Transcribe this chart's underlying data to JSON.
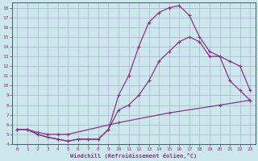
{
  "xlabel": "Windchill (Refroidissement éolien,°C)",
  "background_color": "#cce8ec",
  "grid_color": "#aab4cc",
  "line_color": "#883388",
  "xlim": [
    -0.5,
    23.5
  ],
  "ylim": [
    4,
    18.5
  ],
  "xticks": [
    0,
    1,
    2,
    3,
    4,
    5,
    6,
    7,
    8,
    9,
    10,
    11,
    12,
    13,
    14,
    15,
    16,
    17,
    18,
    19,
    20,
    21,
    22,
    23
  ],
  "yticks": [
    4,
    5,
    6,
    7,
    8,
    9,
    10,
    11,
    12,
    13,
    14,
    15,
    16,
    17,
    18
  ],
  "line1_x": [
    0,
    1,
    2,
    3,
    4,
    5,
    6,
    7,
    8,
    9,
    10,
    11,
    12,
    13,
    14,
    15,
    16,
    17,
    18,
    19,
    20,
    21,
    22,
    23
  ],
  "line1_y": [
    5.5,
    5.5,
    5.0,
    4.7,
    4.5,
    4.3,
    4.5,
    4.5,
    4.5,
    5.5,
    9.0,
    11.0,
    14.0,
    16.5,
    17.5,
    18.0,
    18.2,
    17.2,
    15.0,
    13.5,
    13.0,
    12.5,
    12.0,
    9.5
  ],
  "line2_x": [
    0,
    1,
    2,
    3,
    4,
    5,
    6,
    7,
    8,
    9,
    10,
    11,
    12,
    13,
    14,
    15,
    16,
    17,
    18,
    19,
    20,
    21,
    22,
    23
  ],
  "line2_y": [
    5.5,
    5.5,
    5.0,
    4.7,
    4.5,
    4.3,
    4.5,
    4.5,
    4.5,
    5.5,
    7.5,
    8.0,
    9.0,
    10.5,
    12.5,
    13.5,
    14.5,
    15.0,
    14.5,
    13.0,
    13.0,
    10.5,
    9.5,
    8.5
  ],
  "line3_x": [
    0,
    1,
    2,
    3,
    4,
    5,
    10,
    15,
    20,
    23
  ],
  "line3_y": [
    5.5,
    5.5,
    5.2,
    5.0,
    5.0,
    5.0,
    6.2,
    7.2,
    8.0,
    8.5
  ]
}
